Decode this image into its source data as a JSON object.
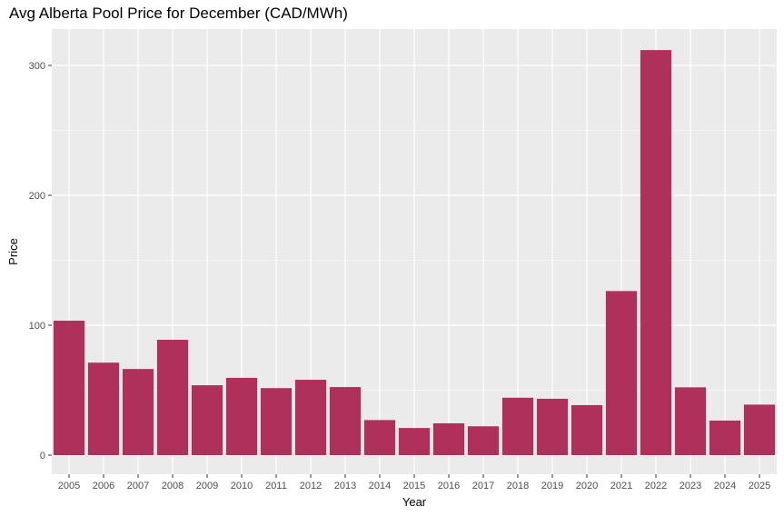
{
  "chart_data": {
    "type": "bar",
    "title": "Avg Alberta Pool Price for December (CAD/MWh)",
    "xlabel": "Year",
    "ylabel": "Price",
    "categories": [
      "2005",
      "2006",
      "2007",
      "2008",
      "2009",
      "2010",
      "2011",
      "2012",
      "2013",
      "2014",
      "2015",
      "2016",
      "2017",
      "2018",
      "2019",
      "2020",
      "2021",
      "2022",
      "2023",
      "2024",
      "2025"
    ],
    "values": [
      103.5,
      71.2,
      66.3,
      88.8,
      53.8,
      59.5,
      51.6,
      58.0,
      52.4,
      27.0,
      20.9,
      24.5,
      22.2,
      44.2,
      43.4,
      38.5,
      126.3,
      311.8,
      52.2,
      26.6,
      38.9
    ],
    "yticks": [
      0,
      100,
      200,
      300
    ],
    "ylim": [
      -10.5,
      327
    ],
    "grid": true,
    "colors": {
      "bar": "#b0305c",
      "panel": "#ebebeb",
      "grid": "#ffffff"
    }
  }
}
